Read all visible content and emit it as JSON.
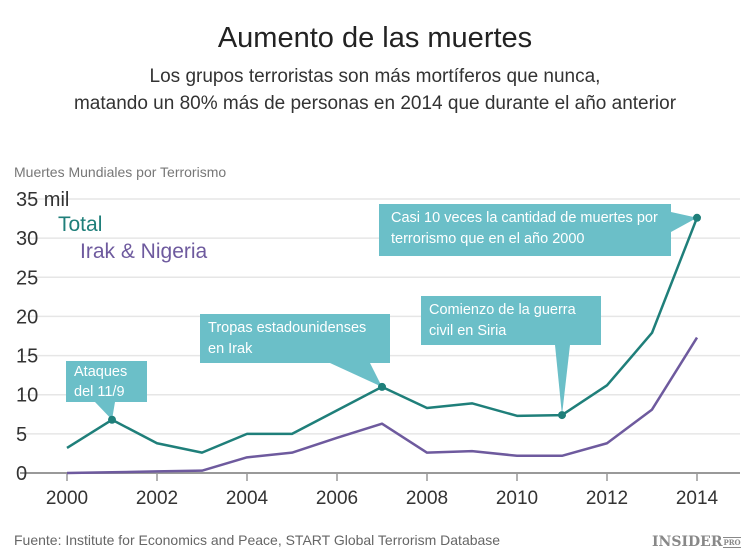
{
  "title": "Aumento de las muertes",
  "subtitle_line1": "Los grupos terroristas son más mortíferos que nunca,",
  "subtitle_line2": "matando un 80% más de personas en 2014 que durante el año anterior",
  "source": "Fuente: Institute for Economics and Peace, START Global Terrorism Database",
  "logo": {
    "main": "INSIDER",
    "suffix": "PRO"
  },
  "colors": {
    "total": "#1f7f7a",
    "irak_nigeria": "#6e5a9e",
    "annotation": "#6bbfc8"
  },
  "annotations": [
    {
      "text": "Ataques del 11/9",
      "year": 2001
    },
    {
      "text": "Tropas estadounidenses en Irak",
      "year": 2007
    },
    {
      "text": "Comienzo de la guerra civil en Siria",
      "year": 2011
    },
    {
      "text": "Casi 10 veces la cantidad de muertes por terrorismo que en el año 2000",
      "year": 2014
    }
  ],
  "chart_data": {
    "type": "line",
    "ylabel": "Muertes Mundiales por Terrorismo",
    "x": [
      2000,
      2001,
      2002,
      2003,
      2004,
      2005,
      2006,
      2007,
      2008,
      2009,
      2010,
      2011,
      2012,
      2013,
      2014
    ],
    "series": [
      {
        "name": "Total",
        "values": [
          3.2,
          6.8,
          3.8,
          2.6,
          5.0,
          5.0,
          8.0,
          11.0,
          8.3,
          8.9,
          7.3,
          7.4,
          11.2,
          17.9,
          32.6
        ]
      },
      {
        "name": "Irak & Nigeria",
        "values": [
          0.0,
          0.1,
          0.2,
          0.3,
          2.0,
          2.6,
          4.5,
          6.3,
          2.6,
          2.8,
          2.2,
          2.2,
          3.8,
          8.1,
          17.3
        ]
      }
    ],
    "xticks": [
      "2000",
      "2002",
      "2004",
      "2006",
      "2008",
      "2010",
      "2012",
      "2014"
    ],
    "yticks": [
      "0",
      "5",
      "10",
      "15",
      "20",
      "25",
      "30",
      "35 mil"
    ],
    "ylim": [
      0,
      35
    ],
    "xlim": [
      2000,
      2014
    ],
    "grid": true,
    "legend": "top-left"
  }
}
